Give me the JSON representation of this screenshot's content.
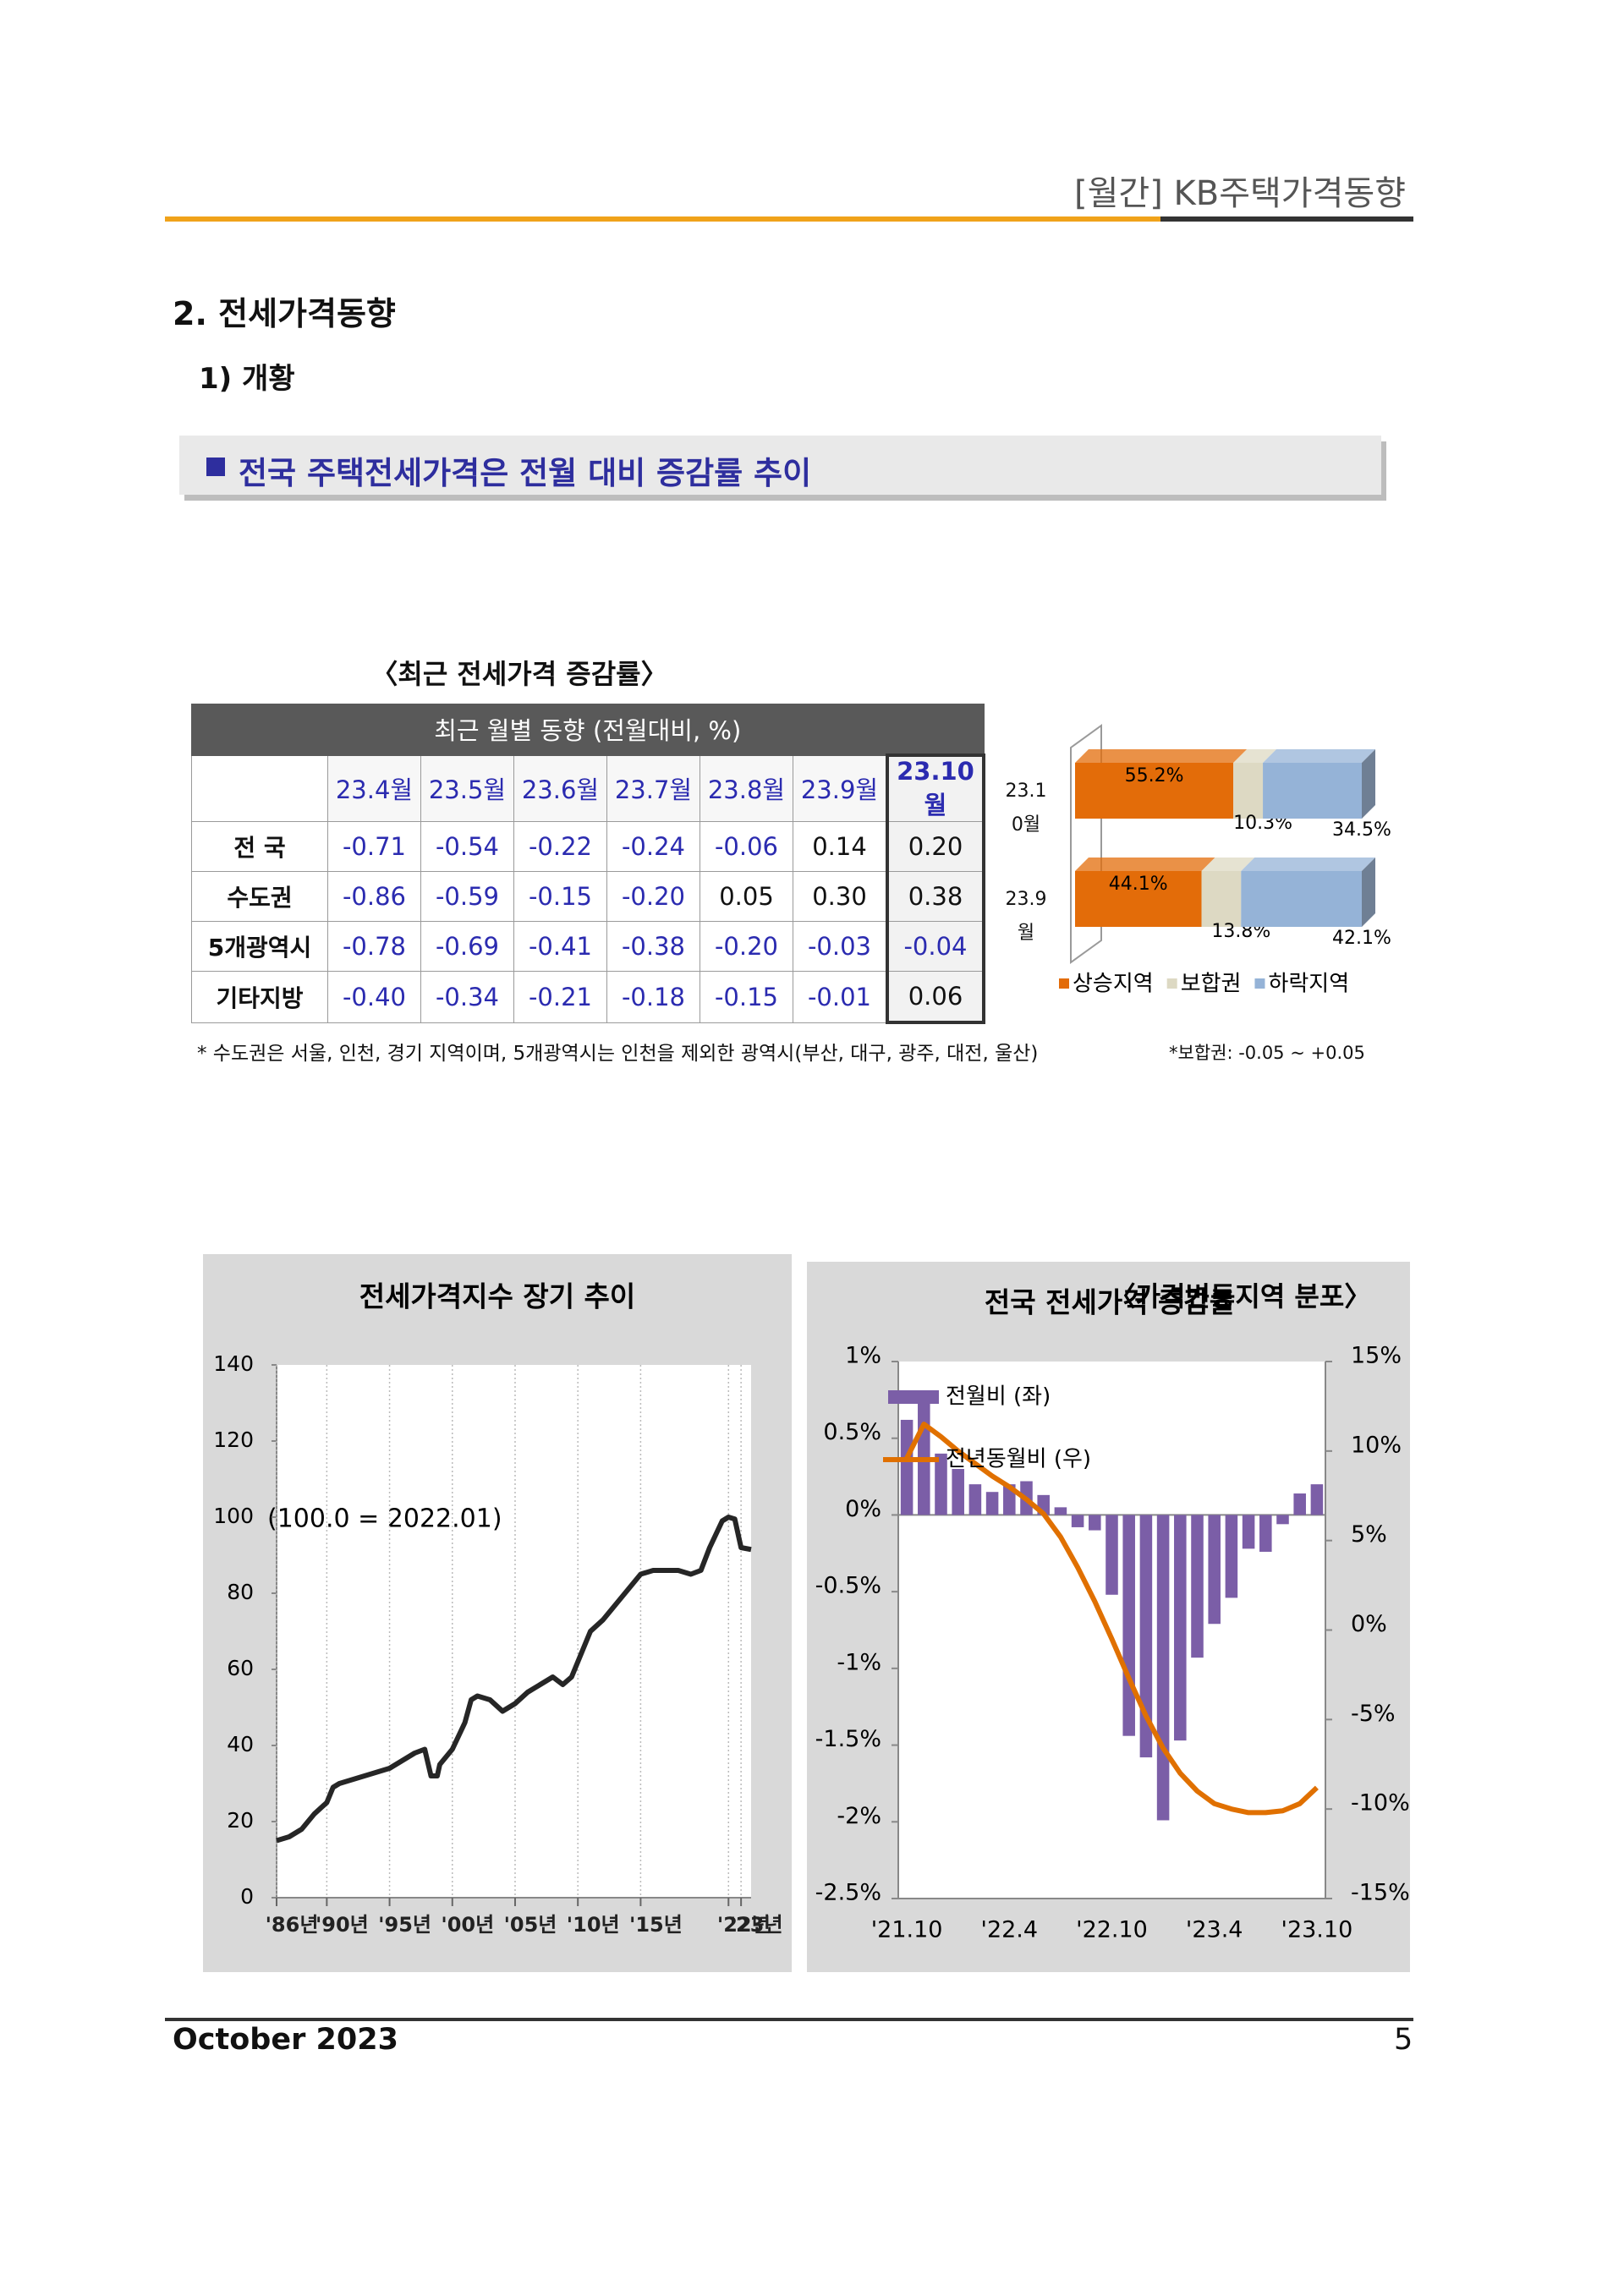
{
  "header": {
    "title": "[월간] KB주택가격동향"
  },
  "section": {
    "title": "2. 전세가격동향",
    "subtitle": "1) 개황",
    "banner": "전국 주택전세가격은 전월 대비 증감률 추이"
  },
  "table": {
    "title": "〈최근 전세가격 증감률〉",
    "header": "최근 월별 동향 (전월대비, %)",
    "columns": [
      "23.4월",
      "23.5월",
      "23.6월",
      "23.7월",
      "23.8월",
      "23.9월",
      "23.10월"
    ],
    "rows": [
      {
        "label": "전 국",
        "values": [
          "-0.71",
          "-0.54",
          "-0.22",
          "-0.24",
          "-0.06",
          "0.14",
          "0.20"
        ]
      },
      {
        "label": "수도권",
        "values": [
          "-0.86",
          "-0.59",
          "-0.15",
          "-0.20",
          "0.05",
          "0.30",
          "0.38"
        ]
      },
      {
        "label": "5개광역시",
        "values": [
          "-0.78",
          "-0.69",
          "-0.41",
          "-0.38",
          "-0.20",
          "-0.03",
          "-0.04"
        ]
      },
      {
        "label": "기타지방",
        "values": [
          "-0.40",
          "-0.34",
          "-0.21",
          "-0.18",
          "-0.15",
          "-0.01",
          "0.06"
        ]
      }
    ]
  },
  "note": "* 수도권은 서울, 인천, 경기 지역이며, 5개광역시는 인천을 제외한 광역시(부산, 대구, 광주, 대전, 울산)",
  "note2": "*보합권: -0.05 ~ +0.05",
  "chart_data": [
    {
      "type": "stacked_hbar",
      "title": "〈가격변동지역 분포〉",
      "categories": [
        "23.10월",
        "23.9월"
      ],
      "legend": "bottom",
      "series": [
        {
          "name": "상승지역",
          "color": "#e36c09",
          "values": [
            55.2,
            44.1
          ],
          "value_labels": [
            "55.2%",
            "44.1%"
          ]
        },
        {
          "name": "보합권",
          "color": "#ddd9c3",
          "values": [
            10.3,
            13.8
          ],
          "value_labels": [
            "10.3%",
            "13.8%"
          ]
        },
        {
          "name": "하락지역",
          "color": "#95b3d7",
          "values": [
            34.5,
            42.1
          ],
          "value_labels": [
            "34.5%",
            "42.1%"
          ]
        }
      ]
    },
    {
      "type": "line",
      "title": "전세가격지수 장기 추이",
      "annotation": "(100.0 = 2022.01)",
      "color": "#262626",
      "x": [
        1986,
        1987,
        1988,
        1989,
        1990,
        1990.5,
        1991,
        1992,
        1993,
        1994,
        1995,
        1996,
        1997,
        1997.8,
        1998.3,
        1998.8,
        1999,
        2000,
        2001,
        2001.5,
        2002,
        2003,
        2004,
        2005,
        2006,
        2007,
        2008,
        2008.8,
        2009.5,
        2010,
        2011,
        2012,
        2013,
        2014,
        2015,
        2016,
        2017,
        2018,
        2019,
        2019.8,
        2020.5,
        2021.5,
        2022,
        2022.5,
        2023,
        2023.8
      ],
      "values": [
        15,
        16,
        18,
        22,
        25,
        29,
        30,
        31,
        32,
        33,
        34,
        36,
        38,
        39,
        32,
        32,
        35,
        39,
        46,
        52,
        53,
        52,
        49,
        51,
        54,
        56,
        58,
        56,
        58,
        62,
        70,
        73,
        77,
        81,
        85,
        86,
        86,
        86,
        85,
        86,
        92,
        99,
        100,
        99.5,
        92,
        91.5
      ],
      "xlim": [
        1986,
        2023.8
      ],
      "xticks": [
        {
          "value": 1986,
          "label": "'86년"
        },
        {
          "value": 1990,
          "label": "'90년"
        },
        {
          "value": 1995,
          "label": "'95년"
        },
        {
          "value": 2000,
          "label": "'00년"
        },
        {
          "value": 2005,
          "label": "'05년"
        },
        {
          "value": 2010,
          "label": "'10년"
        },
        {
          "value": 2015,
          "label": "'15년"
        },
        {
          "value": 2022,
          "label": "'22년"
        },
        {
          "value": 2023,
          "label": "'23년"
        }
      ],
      "ylim": [
        0,
        140
      ],
      "yticks": [
        0,
        20,
        40,
        60,
        80,
        100,
        120,
        140
      ],
      "grid": true
    },
    {
      "type": "combo",
      "title": "전국 전세가격 증감률",
      "legend": "upper left",
      "categories": [
        "'21.10",
        null,
        null,
        null,
        null,
        null,
        "'22.4",
        null,
        null,
        null,
        null,
        null,
        "'22.10",
        null,
        null,
        null,
        null,
        null,
        "'23.4",
        null,
        null,
        null,
        null,
        null,
        "'23.10"
      ],
      "series": [
        {
          "name": "전월비 (좌)",
          "type": "bar",
          "color": "#7b5ea7",
          "values": [
            0.62,
            0.76,
            0.4,
            0.3,
            0.2,
            0.15,
            0.2,
            0.22,
            0.13,
            0.05,
            -0.08,
            -0.1,
            -0.52,
            -1.44,
            -1.58,
            -1.99,
            -1.47,
            -0.93,
            -0.71,
            -0.54,
            -0.22,
            -0.24,
            -0.06,
            0.14,
            0.2
          ]
        },
        {
          "name": "전년동월비 (우)",
          "type": "line",
          "axis": "y2",
          "color": "#e07000",
          "values": [
            9.6,
            11.5,
            10.8,
            10.0,
            9.3,
            8.6,
            8.0,
            7.3,
            6.5,
            5.2,
            3.5,
            1.6,
            -0.5,
            -2.7,
            -4.8,
            -6.6,
            -8.0,
            -9.0,
            -9.7,
            -10.0,
            -10.2,
            -10.2,
            -10.1,
            -9.7,
            -8.8
          ]
        }
      ],
      "ylim": [
        -2.5,
        1
      ],
      "yticks": [
        {
          "value": 1,
          "label": "1%"
        },
        {
          "value": 0.5,
          "label": "0.5%"
        },
        {
          "value": 0,
          "label": "0%"
        },
        {
          "value": -0.5,
          "label": "-0.5%"
        },
        {
          "value": -1,
          "label": "-1%"
        },
        {
          "value": -1.5,
          "label": "-1.5%"
        },
        {
          "value": -2,
          "label": "-2%"
        },
        {
          "value": -2.5,
          "label": "-2.5%"
        }
      ],
      "y2lim": [
        -15,
        15
      ],
      "y2ticks": [
        {
          "value": 15,
          "label": "15%"
        },
        {
          "value": 10,
          "label": "10%"
        },
        {
          "value": 5,
          "label": "5%"
        },
        {
          "value": 0,
          "label": "0%"
        },
        {
          "value": -5,
          "label": "-5%"
        },
        {
          "value": -10,
          "label": "-10%"
        },
        {
          "value": -15,
          "label": "-15%"
        }
      ]
    }
  ],
  "footer": {
    "date": "October 2023",
    "page": "5"
  }
}
